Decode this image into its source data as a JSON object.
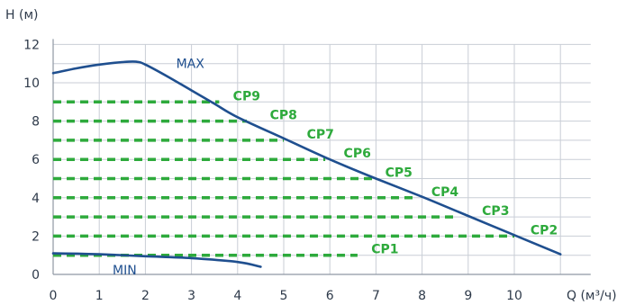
{
  "chart_data": {
    "type": "line",
    "x_axis_label": "Q (м³/ч)",
    "y_axis_label": "H (м)",
    "xlim": [
      0,
      11.5
    ],
    "ylim": [
      0,
      12
    ],
    "x_ticks": [
      "0",
      "1",
      "2",
      "3",
      "4",
      "5",
      "6",
      "7",
      "8",
      "9",
      "10"
    ],
    "y_ticks": [
      "0",
      "2",
      "4",
      "6",
      "8",
      "10",
      "12"
    ],
    "grid": true,
    "colors": {
      "curve": "#1f4f8f",
      "cp": "#2eaa3c",
      "grid": "#c9ced6",
      "axis": "#8f98a3"
    },
    "max_curve": {
      "name": "MAX",
      "label_pos": [
        3.0,
        11.0
      ],
      "points": [
        [
          0,
          10.5
        ],
        [
          0.5,
          10.75
        ],
        [
          1.0,
          10.95
        ],
        [
          1.5,
          11.08
        ],
        [
          1.8,
          11.1
        ],
        [
          2.0,
          10.95
        ],
        [
          2.5,
          10.3
        ],
        [
          3.0,
          9.6
        ],
        [
          3.5,
          8.9
        ],
        [
          4.0,
          8.2
        ],
        [
          5.0,
          7.1
        ],
        [
          6.0,
          6.0
        ],
        [
          7.0,
          5.0
        ],
        [
          8.0,
          4.05
        ],
        [
          9.0,
          3.05
        ],
        [
          10.0,
          2.05
        ],
        [
          11.0,
          1.05
        ]
      ]
    },
    "min_curve": {
      "name": "MIN",
      "label_pos": [
        1.25,
        0.1
      ],
      "points": [
        [
          0,
          1.1
        ],
        [
          1.0,
          1.05
        ],
        [
          2.0,
          0.95
        ],
        [
          3.0,
          0.85
        ],
        [
          4.0,
          0.65
        ],
        [
          4.5,
          0.4
        ]
      ]
    },
    "constant_pressure": [
      {
        "name": "CP1",
        "h": 1,
        "x_end": 6.6,
        "label_x": 6.9
      },
      {
        "name": "CP2",
        "h": 2,
        "x_end": 10.0,
        "label_x": 10.35
      },
      {
        "name": "CP3",
        "h": 3,
        "x_end": 8.7,
        "label_x": 9.3
      },
      {
        "name": "CP4",
        "h": 4,
        "x_end": 7.9,
        "label_x": 8.2
      },
      {
        "name": "CP5",
        "h": 5,
        "x_end": 7.0,
        "label_x": 7.2
      },
      {
        "name": "CP6",
        "h": 6,
        "x_end": 5.9,
        "label_x": 6.3
      },
      {
        "name": "CP7",
        "h": 7,
        "x_end": 5.0,
        "label_x": 5.5
      },
      {
        "name": "CP8",
        "h": 8,
        "x_end": 4.2,
        "label_x": 4.7
      },
      {
        "name": "CP9",
        "h": 9,
        "x_end": 3.6,
        "label_x": 3.9
      }
    ]
  }
}
